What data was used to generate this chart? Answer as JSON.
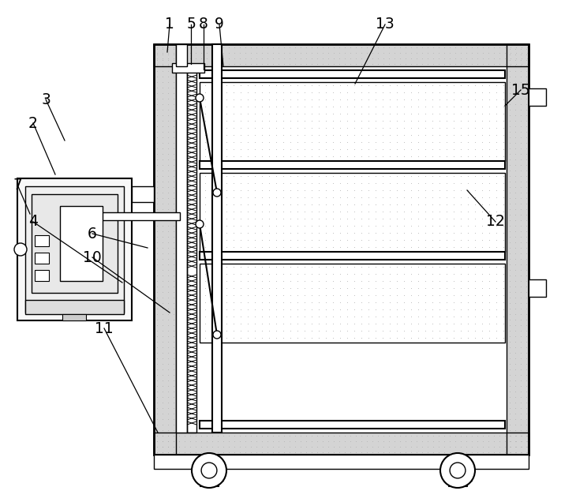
{
  "bg_color": "#ffffff",
  "lc": "#000000",
  "fig_width": 7.11,
  "fig_height": 6.36,
  "dpi": 100,
  "wall_fill": "#d4d4d4",
  "shelf_fill": "#e0e0e0",
  "white": "#ffffff",
  "dot_color": "#999999",
  "hatch_wall": "#bbbbbb"
}
